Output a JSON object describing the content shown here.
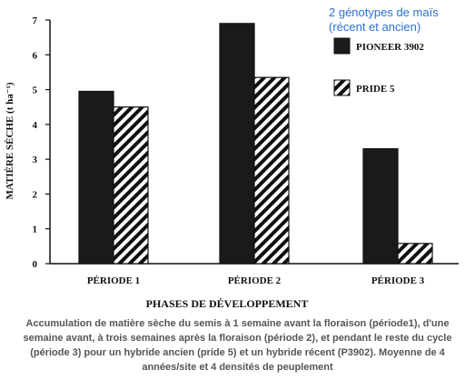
{
  "annotation": {
    "line1": "2 génotypes de maïs",
    "line2": "(récent et ancien)"
  },
  "caption": {
    "line1": "Accumulation de matière sèche du semis à 1 semaine avant la floraison (période1), d'une",
    "line2": "semaine avant, à trois semaines après la floraison (période 2), et pendant le reste du cycle",
    "line3": "(période 3) pour un hybride ancien (pride 5) et un hybride récent (P3902). Moyenne de 4",
    "line4": "années/site et 4 densités de peuplement"
  },
  "chart_data": {
    "type": "bar",
    "categories": [
      "PÉRIODE 1",
      "PÉRIODE 2",
      "PÉRIODE 3"
    ],
    "series": [
      {
        "name": "PIONEER 3902",
        "values": [
          4.95,
          6.9,
          3.3
        ],
        "fill": "solid",
        "color": "#1a1a1a"
      },
      {
        "name": "PRIDE 5",
        "values": [
          4.5,
          5.35,
          0.58
        ],
        "fill": "hatched",
        "color": "#111111"
      }
    ],
    "xlabel": "PHASES DE DÉVELOPPEMENT",
    "ylabel": "MATIÈRE SÈCHE (t ha⁻¹)",
    "ylim": [
      0,
      7
    ],
    "yticks": [
      0,
      1,
      2,
      3,
      4,
      5,
      6,
      7
    ],
    "grid": false,
    "legend_position": "top-right"
  }
}
